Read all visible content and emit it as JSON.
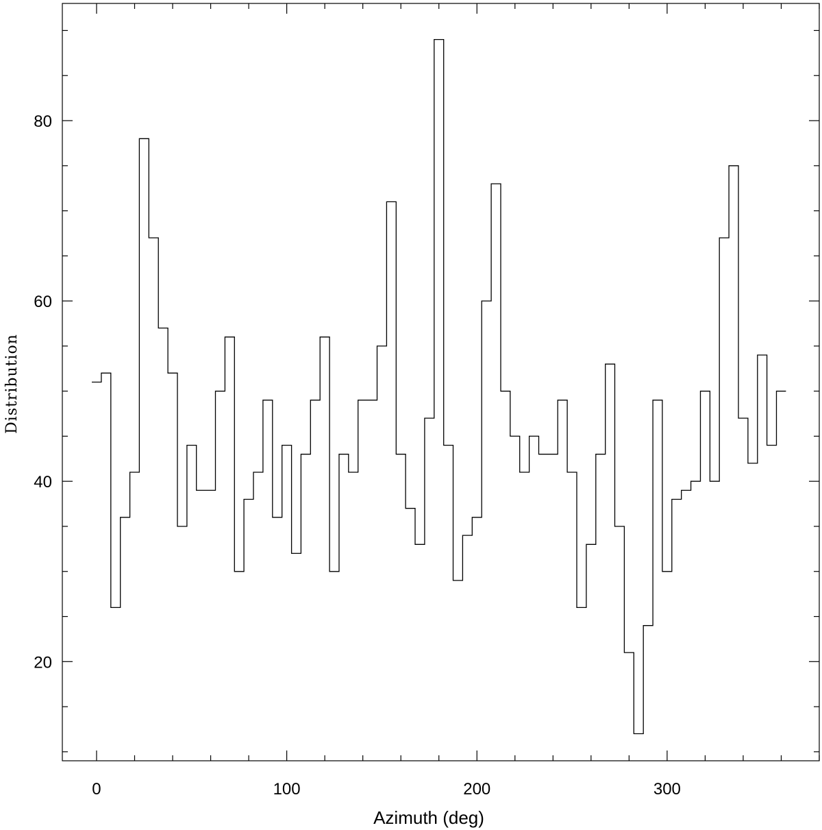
{
  "chart_data": {
    "type": "histogram",
    "title": "",
    "xlabel": "Azimuth (deg)",
    "ylabel": "Distribution",
    "xlim": [
      -18,
      380
    ],
    "ylim": [
      9,
      93
    ],
    "x_major_ticks": [
      0,
      100,
      200,
      300
    ],
    "x_minor_step": 20,
    "y_major_ticks": [
      20,
      40,
      60,
      80
    ],
    "y_minor_step": 5,
    "grid": false,
    "legend": "none",
    "line_color": "#000000",
    "series": [
      {
        "bin_width": 5,
        "bin_centers": [
          0,
          5,
          10,
          15,
          20,
          25,
          30,
          35,
          40,
          45,
          50,
          55,
          60,
          65,
          70,
          75,
          80,
          85,
          90,
          95,
          100,
          105,
          110,
          115,
          120,
          125,
          130,
          135,
          140,
          145,
          150,
          155,
          160,
          165,
          170,
          175,
          180,
          185,
          190,
          195,
          200,
          205,
          210,
          215,
          220,
          225,
          230,
          235,
          240,
          245,
          250,
          255,
          260,
          265,
          270,
          275,
          280,
          285,
          290,
          295,
          300,
          305,
          310,
          315,
          320,
          325,
          330,
          335,
          340,
          345,
          350,
          355,
          360
        ],
        "values": [
          51,
          52,
          26,
          36,
          41,
          78,
          67,
          57,
          52,
          35,
          44,
          39,
          39,
          50,
          56,
          30,
          38,
          41,
          49,
          36,
          44,
          32,
          43,
          49,
          56,
          30,
          43,
          41,
          49,
          49,
          55,
          71,
          43,
          37,
          33,
          47,
          89,
          44,
          29,
          34,
          36,
          60,
          73,
          50,
          45,
          41,
          45,
          43,
          43,
          49,
          41,
          26,
          33,
          43,
          53,
          35,
          21,
          12,
          24,
          49,
          30,
          38,
          39,
          40,
          50,
          40,
          67,
          75,
          47,
          42,
          54,
          44,
          50
        ]
      }
    ]
  }
}
